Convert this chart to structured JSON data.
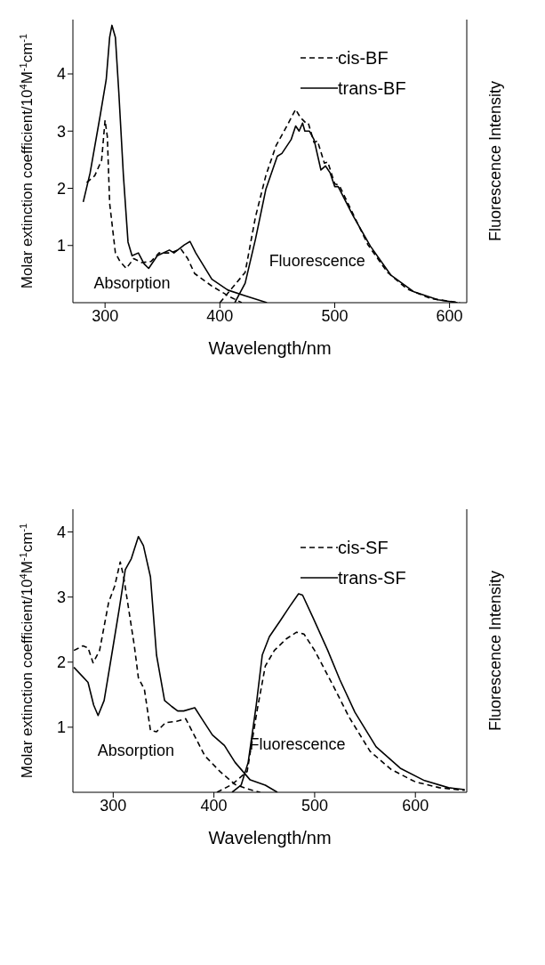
{
  "chart_data": [
    {
      "type": "line",
      "xlabel": "Wavelength/nm",
      "ylabel": "Molar extinction coefficient/10$^{4}$M$^{-1}$cm$^{-1}$",
      "y2label": "Fluorescence Intensity",
      "xlim": [
        272,
        615
      ],
      "xticks": [
        300,
        400,
        500,
        600
      ],
      "ylim": [
        0,
        4.95
      ],
      "yticks": [
        1,
        2,
        3,
        4
      ],
      "legend": "top right",
      "marker": "none",
      "annotations": [
        "Absorption",
        "Fluorescence"
      ],
      "series": [
        {
          "name": "cis-BF",
          "color": "#000000",
          "line_style": "dashed",
          "x": [
            284,
            291,
            297,
            300,
            302,
            304,
            309,
            313,
            318.5,
            325,
            332,
            340,
            347,
            357,
            366,
            372,
            378,
            393,
            409,
            419
          ],
          "values": [
            2.1,
            2.22,
            2.49,
            3.19,
            2.9,
            1.74,
            0.87,
            0.72,
            0.6,
            0.77,
            0.7,
            0.72,
            0.87,
            0.87,
            0.94,
            0.77,
            0.51,
            0.29,
            0.1,
            0
          ]
        },
        {
          "name": "trans-BF",
          "color": "#000000",
          "line_style": "solid",
          "x": [
            281,
            287,
            296,
            301,
            304,
            306,
            309,
            312,
            316,
            320,
            323.5,
            329,
            334,
            338,
            345.5,
            356,
            360,
            369,
            374,
            379,
            393,
            407,
            422,
            441
          ],
          "values": [
            1.76,
            2.27,
            3.3,
            3.9,
            4.64,
            4.85,
            4.64,
            3.67,
            2.22,
            1.06,
            0.82,
            0.87,
            0.68,
            0.6,
            0.82,
            0.92,
            0.87,
            1.01,
            1.07,
            0.87,
            0.41,
            0.22,
            0.12,
            0
          ]
        },
        {
          "color": "#000000",
          "line_style": "dashed",
          "x": [
            400,
            410,
            422,
            431,
            440,
            449,
            457,
            466,
            470,
            475,
            477,
            482,
            485,
            491,
            494,
            500,
            504,
            516,
            529,
            546,
            563,
            584,
            609
          ],
          "values": [
            0,
            0.24,
            0.53,
            1.5,
            2.22,
            2.75,
            3.04,
            3.38,
            3.24,
            3.14,
            3.14,
            2.8,
            2.83,
            2.44,
            2.46,
            2.08,
            2.05,
            1.55,
            1.01,
            0.53,
            0.24,
            0.07,
            0
          ]
        },
        {
          "color": "#000000",
          "line_style": "solid",
          "x": [
            413,
            422,
            431,
            440,
            450,
            454,
            462,
            466,
            469,
            472,
            474,
            478,
            482,
            488,
            492,
            496,
            500,
            503,
            516,
            531,
            549,
            569,
            590,
            607
          ],
          "values": [
            0,
            0.34,
            1.11,
            1.98,
            2.56,
            2.61,
            2.85,
            3.09,
            3.0,
            3.14,
            3.0,
            3.0,
            2.85,
            2.32,
            2.39,
            2.27,
            2.03,
            2.03,
            1.52,
            0.99,
            0.48,
            0.19,
            0.05,
            0
          ]
        }
      ]
    },
    {
      "type": "line",
      "xlabel": "Wavelength/nm",
      "ylabel": "Molar extinction coefficient/10$^{4}$M$^{-1}$cm$^{-1}$",
      "y2label": "Fluorescence Intensity",
      "xlim": [
        260,
        651
      ],
      "xticks": [
        300,
        400,
        500,
        600
      ],
      "ylim": [
        0,
        4.35
      ],
      "yticks": [
        1,
        2,
        3,
        4
      ],
      "legend": "top right",
      "marker": "none",
      "annotations": [
        "Absorption",
        "Fluorescence"
      ],
      "series": [
        {
          "name": "cis-SF",
          "color": "#000000",
          "line_style": "dashed",
          "x": [
            261,
            270,
            275,
            280,
            286.5,
            295.5,
            301.5,
            307,
            310.4,
            315,
            321,
            325,
            331,
            337,
            343,
            352,
            363,
            372,
            379,
            391,
            406,
            421,
            436,
            446
          ],
          "values": [
            2.18,
            2.25,
            2.22,
            1.99,
            2.18,
            2.92,
            3.17,
            3.54,
            3.31,
            2.85,
            2.25,
            1.76,
            1.58,
            0.95,
            0.93,
            1.07,
            1.09,
            1.13,
            0.92,
            0.56,
            0.32,
            0.12,
            0.04,
            0
          ]
        },
        {
          "name": "trans-SF",
          "color": "#000000",
          "line_style": "solid",
          "x": [
            261,
            275,
            280.6,
            285,
            291,
            298.5,
            306,
            312,
            318,
            325,
            330,
            337,
            343,
            351,
            358,
            364,
            370,
            381,
            388,
            398.5,
            410.4,
            421,
            436,
            451,
            463
          ],
          "values": [
            1.92,
            1.69,
            1.34,
            1.18,
            1.41,
            2.11,
            2.82,
            3.42,
            3.59,
            3.93,
            3.79,
            3.31,
            2.11,
            1.41,
            1.32,
            1.25,
            1.25,
            1.3,
            1.13,
            0.88,
            0.72,
            0.46,
            0.19,
            0.11,
            0
          ]
        },
        {
          "color": "#000000",
          "line_style": "dashed",
          "x": [
            403,
            418,
            433,
            443,
            451,
            460,
            472,
            482,
            489.5,
            500,
            519,
            534,
            555,
            576,
            600,
            624,
            649
          ],
          "values": [
            0,
            0.12,
            0.32,
            1.27,
            1.94,
            2.18,
            2.36,
            2.46,
            2.43,
            2.18,
            1.62,
            1.16,
            0.63,
            0.35,
            0.16,
            0.07,
            0.03
          ]
        },
        {
          "color": "#000000",
          "line_style": "solid",
          "x": [
            418,
            427,
            434,
            442,
            448,
            455,
            466,
            475,
            484,
            488,
            498.5,
            513,
            525,
            540,
            561,
            585,
            609,
            633,
            649
          ],
          "values": [
            0,
            0.11,
            0.46,
            1.34,
            2.11,
            2.39,
            2.64,
            2.85,
            3.05,
            3.03,
            2.68,
            2.18,
            1.73,
            1.23,
            0.7,
            0.37,
            0.18,
            0.07,
            0.04
          ]
        }
      ]
    }
  ]
}
